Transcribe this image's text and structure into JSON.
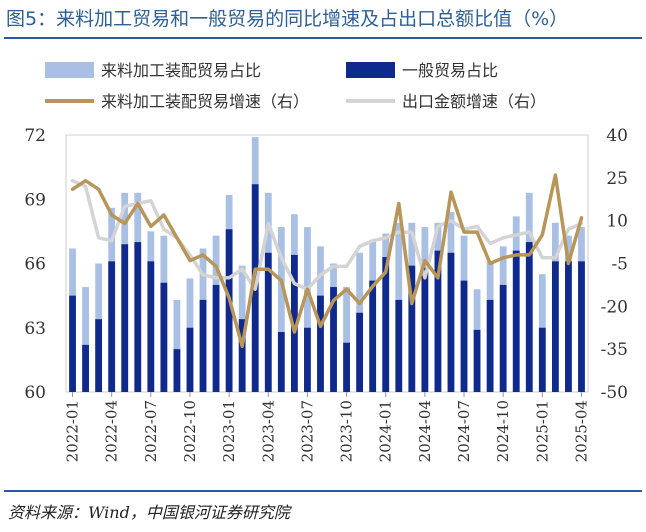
{
  "title": "图5：来料加工贸易和一般贸易的同比增速及占出口总额比值（%）",
  "source": "资料来源：Wind，中国银河证券研究院",
  "colors": {
    "processing_share": "#a9bfe4",
    "general_share": "#0f2a8c",
    "processing_growth": "#b8965a",
    "export_growth": "#d4d4d4",
    "title": "#2e5f95",
    "rule": "#2f56a0"
  },
  "chart_data": {
    "type": "bar+line",
    "legend": [
      "来料加工装配贸易占比",
      "一般贸易占比",
      "来料加工装配贸易增速（右）",
      "出口金额增速（右）"
    ],
    "y_left": {
      "min": 60,
      "max": 72,
      "ticks": [
        60,
        63,
        66,
        69,
        72
      ]
    },
    "y_right": {
      "min": -50,
      "max": 40,
      "ticks": [
        -50,
        -35,
        -20,
        -5,
        10,
        25,
        40
      ]
    },
    "x_tick_labels": [
      "2022-01",
      "2022-04",
      "2022-07",
      "2022-10",
      "2023-01",
      "2023-04",
      "2023-07",
      "2023-10",
      "2024-01",
      "2024-04",
      "2024-07",
      "2024-10",
      "2025-01",
      "2025-04"
    ],
    "x_tick_every": 3,
    "months": [
      "2022-01",
      "2022-02",
      "2022-03",
      "2022-04",
      "2022-05",
      "2022-06",
      "2022-07",
      "2022-08",
      "2022-09",
      "2022-10",
      "2022-11",
      "2022-12",
      "2023-01",
      "2023-02",
      "2023-03",
      "2023-04",
      "2023-05",
      "2023-06",
      "2023-07",
      "2023-08",
      "2023-09",
      "2023-10",
      "2023-11",
      "2023-12",
      "2024-01",
      "2024-02",
      "2024-03",
      "2024-04",
      "2024-05",
      "2024-06",
      "2024-07",
      "2024-08",
      "2024-09",
      "2024-10",
      "2024-11",
      "2024-12",
      "2025-01",
      "2025-02",
      "2025-03",
      "2025-04"
    ],
    "series": [
      {
        "name": "来料加工装配贸易占比",
        "type": "bar",
        "axis": "left",
        "values": [
          66.7,
          64.9,
          66.0,
          68.6,
          69.3,
          69.3,
          67.5,
          67.3,
          64.3,
          65.3,
          66.7,
          67.3,
          69.2,
          65.9,
          71.9,
          69.3,
          67.7,
          68.3,
          67.7,
          66.8,
          66.0,
          64.9,
          66.5,
          67.1,
          67.4,
          67.9,
          67.9,
          67.7,
          67.9,
          68.4,
          67.3,
          64.8,
          66.1,
          66.8,
          68.2,
          69.3,
          65.5,
          67.9,
          67.3,
          67.7
        ]
      },
      {
        "name": "一般贸易占比",
        "type": "bar",
        "axis": "left",
        "values": [
          64.5,
          62.2,
          63.4,
          66.1,
          66.9,
          67.0,
          66.1,
          65.1,
          62.0,
          63.0,
          64.3,
          65.0,
          67.6,
          63.4,
          69.7,
          66.5,
          62.8,
          66.4,
          63.0,
          64.5,
          64.9,
          62.3,
          63.7,
          65.2,
          66.3,
          64.3,
          65.9,
          65.8,
          66.6,
          66.5,
          65.2,
          62.9,
          64.3,
          65.0,
          66.6,
          67.0,
          63.0,
          66.1,
          66.1,
          66.1
        ]
      },
      {
        "name": "来料加工装配贸易增速（右）",
        "type": "line",
        "axis": "right",
        "values": [
          21,
          24,
          21,
          12,
          9,
          16,
          8,
          12,
          4,
          -4,
          -2,
          -6,
          -17,
          -34,
          -7,
          -7,
          -11,
          -29,
          -14,
          -27,
          -18,
          -14,
          -19,
          -13,
          -8,
          16,
          -19,
          -4,
          -10,
          20,
          6,
          6,
          -5,
          -3,
          -2,
          -2,
          5,
          26,
          -5,
          11
        ]
      },
      {
        "name": "出口金额增速（右）",
        "type": "line",
        "axis": "right",
        "values": [
          24,
          22,
          4,
          3,
          15,
          16,
          17,
          7,
          4,
          -2,
          -9,
          -10,
          -10,
          -7,
          -14,
          9,
          -3,
          -12,
          -14,
          -9,
          -6,
          -6,
          1,
          3,
          4,
          6,
          6,
          -10,
          8,
          10,
          7,
          8,
          2,
          4,
          5,
          6,
          -3,
          -3,
          7,
          9
        ]
      }
    ]
  }
}
